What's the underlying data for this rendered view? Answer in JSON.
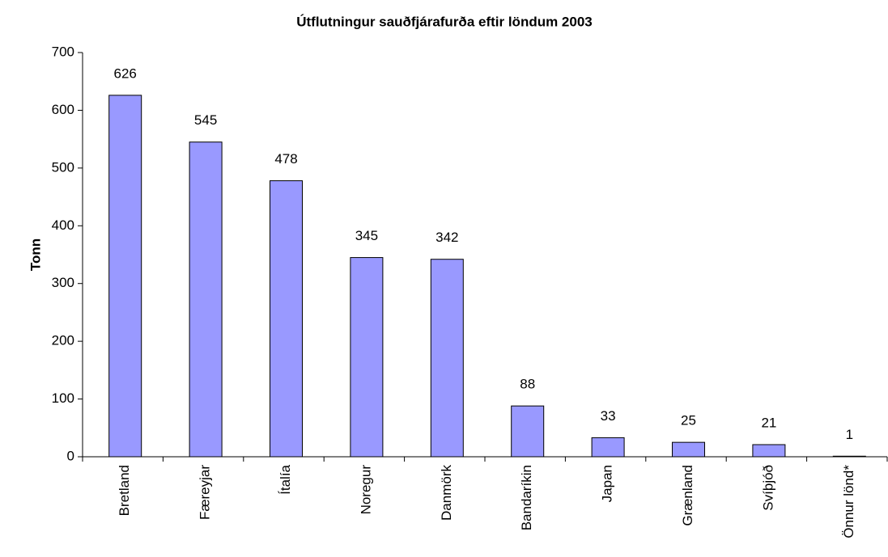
{
  "chart_data": {
    "type": "bar",
    "title": "Útflutningur sauðfjárafurða eftir löndum 2003",
    "y_label": "Tonn",
    "categories": [
      "Bretland",
      "Færeyjar",
      "Ítalía",
      "Noregur",
      "Danmörk",
      "Bandaríkin",
      "Japan",
      "Grænland",
      "Svíþjóð",
      "Önnur lönd*"
    ],
    "values": [
      626,
      545,
      478,
      345,
      342,
      88,
      33,
      25,
      21,
      1
    ],
    "color": "#9999ff",
    "ylim": [
      0,
      700
    ],
    "yticks": [
      0,
      100,
      200,
      300,
      400,
      500,
      600,
      700
    ],
    "grid": false
  }
}
